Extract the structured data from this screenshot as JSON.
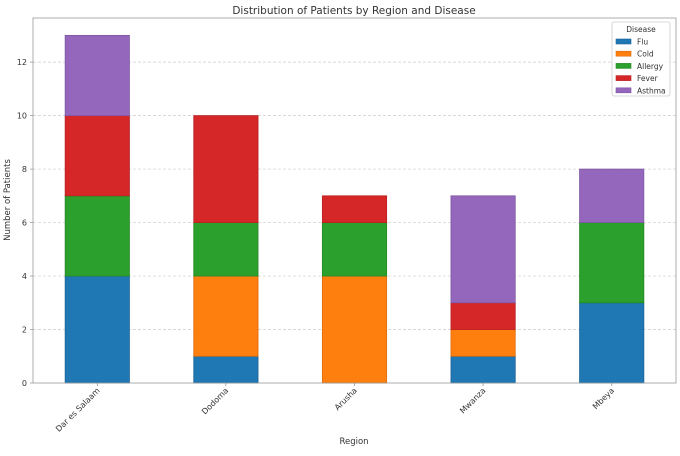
{
  "chart_data": {
    "type": "bar",
    "stacked": true,
    "title": "Distribution of Patients by Region and Disease",
    "xlabel": "Region",
    "ylabel": "Number of Patients",
    "categories": [
      "Dar es Salaam",
      "Dodoma",
      "Arusha",
      "Mwanza",
      "Mbeya"
    ],
    "series": [
      {
        "name": "Flu",
        "color": "#1f77b4",
        "values": [
          4,
          1,
          0,
          1,
          3
        ]
      },
      {
        "name": "Cold",
        "color": "#ff7f0e",
        "values": [
          0,
          3,
          4,
          1,
          0
        ]
      },
      {
        "name": "Allergy",
        "color": "#2ca02c",
        "values": [
          3,
          2,
          2,
          0,
          3
        ]
      },
      {
        "name": "Fever",
        "color": "#d62728",
        "values": [
          3,
          4,
          1,
          1,
          0
        ]
      },
      {
        "name": "Asthma",
        "color": "#9467bd",
        "values": [
          3,
          0,
          0,
          4,
          2
        ]
      }
    ],
    "ylim": [
      0,
      13.65
    ],
    "yticks": [
      0,
      2,
      4,
      6,
      8,
      10,
      12
    ],
    "grid": {
      "y": true,
      "x": false,
      "style": "dashed"
    },
    "legend": {
      "title": "Disease",
      "placement": "top-right"
    },
    "xtick_rotation": 45
  }
}
